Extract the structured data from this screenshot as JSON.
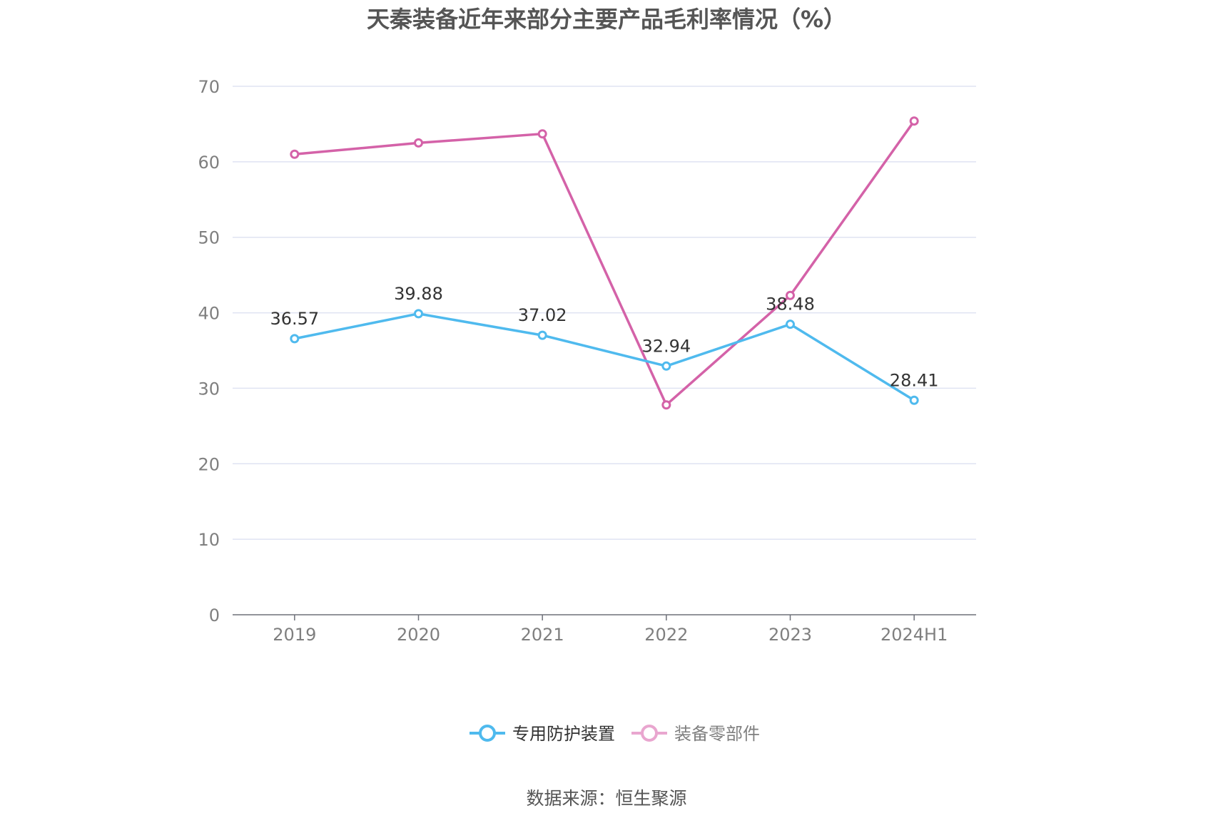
{
  "chart_data": {
    "type": "line",
    "title": "天秦装备近年来部分主要产品毛利率情况（%）",
    "categories": [
      "2019",
      "2020",
      "2021",
      "2022",
      "2023",
      "2024H1"
    ],
    "ylim": [
      0,
      70
    ],
    "yticks": [
      0,
      10,
      20,
      30,
      40,
      50,
      60,
      70
    ],
    "grid": true,
    "legend_position": "bottom",
    "series": [
      {
        "name": "专用防护装置",
        "color": "#4fbaee",
        "values": [
          36.57,
          39.88,
          37.02,
          32.94,
          38.48,
          28.41
        ],
        "data_labels": [
          "36.57",
          "39.88",
          "37.02",
          "32.94",
          "38.48",
          "28.41"
        ]
      },
      {
        "name": "装备零部件",
        "color": "#d462a8",
        "legend_color": "#e9a6cf",
        "values": [
          61.0,
          62.5,
          63.7,
          27.8,
          42.3,
          65.4
        ]
      }
    ],
    "source": "数据来源：恒生聚源"
  }
}
